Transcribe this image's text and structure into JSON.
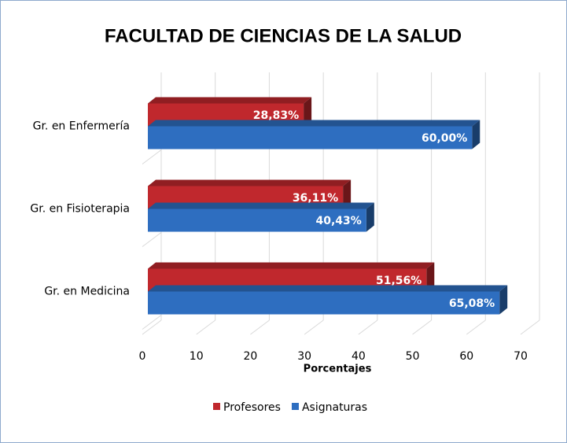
{
  "chart_data": {
    "type": "bar",
    "orientation": "horizontal",
    "title": "FACULTAD DE CIENCIAS DE LA SALUD",
    "categories": [
      "Gr. en Enfermería",
      "Gr. en Fisioterapia",
      "Gr. en Medicina"
    ],
    "series": [
      {
        "name": "Profesores",
        "color": "#c0282d",
        "values": [
          28.83,
          36.11,
          51.56
        ],
        "value_labels": [
          "28,83%",
          "36,11%",
          "51,56%"
        ]
      },
      {
        "name": "Asignaturas",
        "color": "#2e6ec0",
        "values": [
          60.0,
          40.43,
          65.08
        ],
        "value_labels": [
          "60,00%",
          "40,43%",
          "65,08%"
        ]
      }
    ],
    "xlabel": "Porcentajes",
    "xlim": [
      0,
      70
    ],
    "xticks": [
      0,
      10,
      20,
      30,
      40,
      50,
      60,
      70
    ],
    "grid": true,
    "legend": "bottom"
  }
}
